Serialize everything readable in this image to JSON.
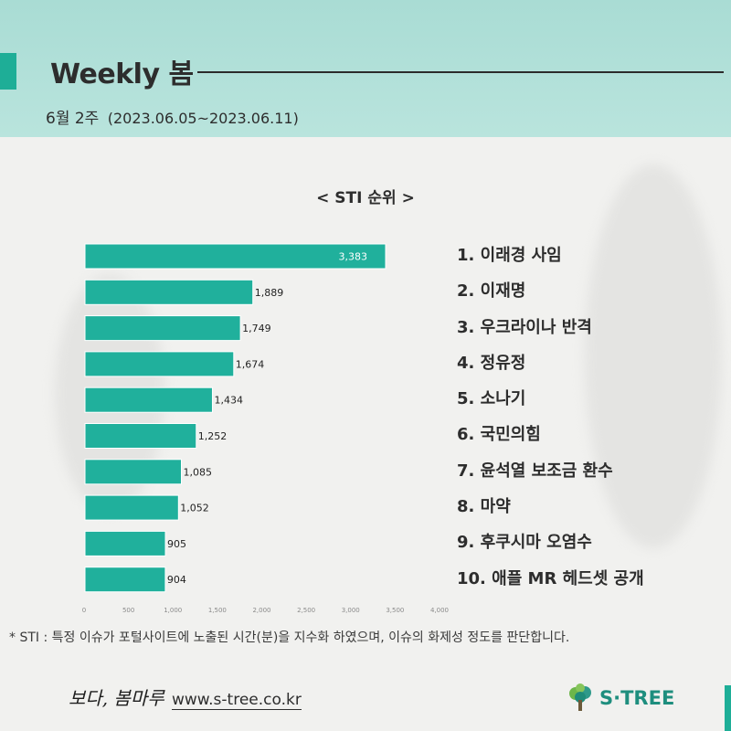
{
  "header": {
    "title": "Weekly 봄",
    "week": "6월 2주",
    "range": "(2023.06.05~2023.06.11)"
  },
  "chart_title": "< STI 순위 >",
  "ranking": [
    "1. 이래경 사임",
    "2. 이재명",
    "3. 우크라이나 반격",
    "4. 정유정",
    "5. 소나기",
    "6. 국민의힘",
    "7. 윤석열 보조금 환수",
    "8. 마약",
    "9. 후쿠시마 오염수",
    "10. 애플 MR 헤드셋 공개"
  ],
  "chart_data": {
    "type": "bar",
    "orientation": "horizontal",
    "title": "< STI 순위 >",
    "categories": [
      "이래경 사임",
      "이재명",
      "우크라이나 반격",
      "정유정",
      "소나기",
      "국민의힘",
      "윤석열 보조금 환수",
      "마약",
      "후쿠시마 오염수",
      "애플 MR 헤드셋 공개"
    ],
    "values": [
      3383,
      1889,
      1749,
      1674,
      1434,
      1252,
      1085,
      1052,
      905,
      904
    ],
    "value_labels": [
      "3,383",
      "1,889",
      "1,749",
      "1,674",
      "1,434",
      "1,252",
      "1,085",
      "1,052",
      "905",
      "904"
    ],
    "xlim": [
      0,
      4000
    ],
    "x_ticks": [
      0,
      500,
      1000,
      1500,
      2000,
      2500,
      3000,
      3500,
      4000
    ],
    "x_tick_labels": [
      "0",
      "500",
      "1,000",
      "1,500",
      "2,000",
      "2,500",
      "3,000",
      "3,500",
      "4,000"
    ],
    "bar_color": "#20b09c",
    "grid": false
  },
  "footnote": "* STI : 특정 이슈가 포털사이트에 노출된 시간(분)을 지수화 하였으며, 이슈의 화제성 정도를 판단합니다.",
  "footer": {
    "signature": "보다, 봄마루",
    "website": "www.s-tree.co.kr",
    "logo_text": "S·TREE"
  },
  "colors": {
    "accent": "#1eae97",
    "header_bg": "#b3e1da",
    "text": "#2d2d2d"
  }
}
